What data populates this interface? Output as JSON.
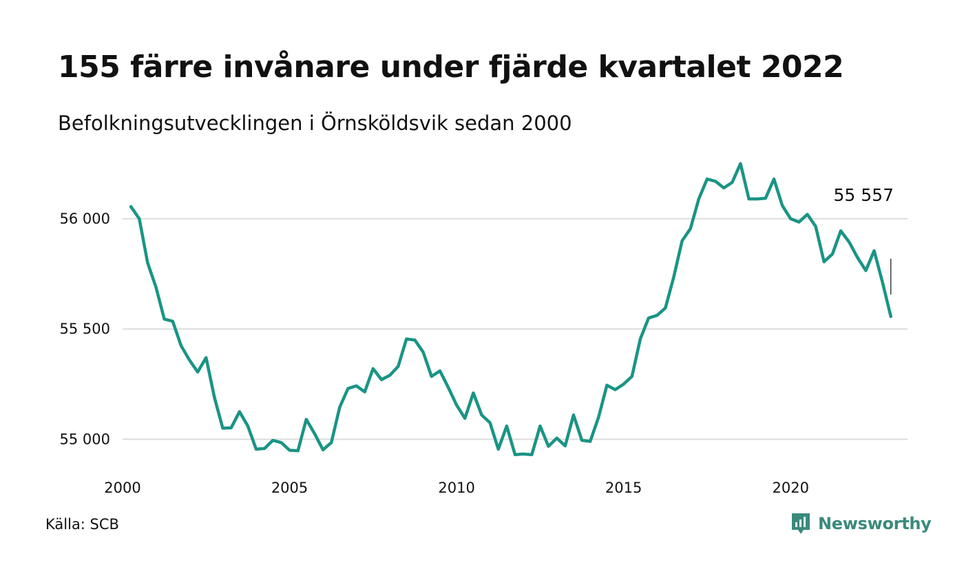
{
  "header": {
    "title": "155 färre invånare under fjärde kvartalet 2022",
    "subtitle": "Befolkningsutvecklingen i Örnsköldsvik sedan 2000"
  },
  "footer": {
    "source": "Källa: SCB",
    "brand": "Newsworthy"
  },
  "colors": {
    "line": "#1a9484",
    "grid": "#dddddd",
    "brand": "#3a8a7c"
  },
  "chart_data": {
    "type": "line",
    "title": "155 färre invånare under fjärde kvartalet 2022",
    "subtitle": "Befolkningsutvecklingen i Örnsköldsvik sedan 2000",
    "xlabel": "",
    "ylabel": "",
    "xlim": [
      2000,
      2023.5
    ],
    "ylim": [
      54870,
      56290
    ],
    "grid": true,
    "x_ticks": [
      {
        "value": 2000,
        "label": "2000"
      },
      {
        "value": 2005,
        "label": "2005"
      },
      {
        "value": 2010,
        "label": "2010"
      },
      {
        "value": 2015,
        "label": "2015"
      },
      {
        "value": 2020,
        "label": "2020"
      }
    ],
    "y_ticks": [
      {
        "value": 55000,
        "label": "55 000"
      },
      {
        "value": 55500,
        "label": "55 500"
      },
      {
        "value": 56000,
        "label": "56 000"
      }
    ],
    "last_value_label": "55 557",
    "x": [
      2000.25,
      2000.5,
      2000.75,
      2001.0,
      2001.25,
      2001.5,
      2001.75,
      2002.0,
      2002.25,
      2002.5,
      2002.75,
      2003.0,
      2003.25,
      2003.5,
      2003.75,
      2004.0,
      2004.25,
      2004.5,
      2004.75,
      2005.0,
      2005.25,
      2005.5,
      2005.75,
      2006.0,
      2006.25,
      2006.5,
      2006.75,
      2007.0,
      2007.25,
      2007.5,
      2007.75,
      2008.0,
      2008.25,
      2008.5,
      2008.75,
      2009.0,
      2009.25,
      2009.5,
      2009.75,
      2010.0,
      2010.25,
      2010.5,
      2010.75,
      2011.0,
      2011.25,
      2011.5,
      2011.75,
      2012.0,
      2012.25,
      2012.5,
      2012.75,
      2013.0,
      2013.25,
      2013.5,
      2013.75,
      2014.0,
      2014.25,
      2014.5,
      2014.75,
      2015.0,
      2015.25,
      2015.5,
      2015.75,
      2016.0,
      2016.25,
      2016.5,
      2016.75,
      2017.0,
      2017.25,
      2017.5,
      2017.75,
      2018.0,
      2018.25,
      2018.5,
      2018.75,
      2019.0,
      2019.25,
      2019.5,
      2019.75,
      2020.0,
      2020.25,
      2020.5,
      2020.75,
      2021.0,
      2021.25,
      2021.5,
      2021.75,
      2022.0,
      2022.25,
      2022.5,
      2022.75,
      2023.0
    ],
    "values": [
      56055,
      56000,
      55800,
      55690,
      55545,
      55535,
      55425,
      55360,
      55305,
      55370,
      55190,
      55050,
      55052,
      55125,
      55060,
      54955,
      54958,
      54995,
      54985,
      54950,
      54948,
      55090,
      55025,
      54952,
      54985,
      55145,
      55230,
      55242,
      55215,
      55320,
      55270,
      55290,
      55330,
      55455,
      55450,
      55395,
      55285,
      55310,
      55235,
      55155,
      55095,
      55210,
      55110,
      55075,
      54955,
      55060,
      54930,
      54933,
      54930,
      55060,
      54968,
      55005,
      54970,
      55110,
      54995,
      54990,
      55100,
      55245,
      55225,
      55250,
      55285,
      55455,
      55550,
      55562,
      55595,
      55735,
      55900,
      55955,
      56090,
      56180,
      56170,
      56140,
      56165,
      56250,
      56090,
      56090,
      56093,
      56180,
      56060,
      56000,
      55985,
      56020,
      55965,
      55805,
      55840,
      55945,
      55895,
      55825,
      55765,
      55855,
      55712,
      55557
    ]
  }
}
